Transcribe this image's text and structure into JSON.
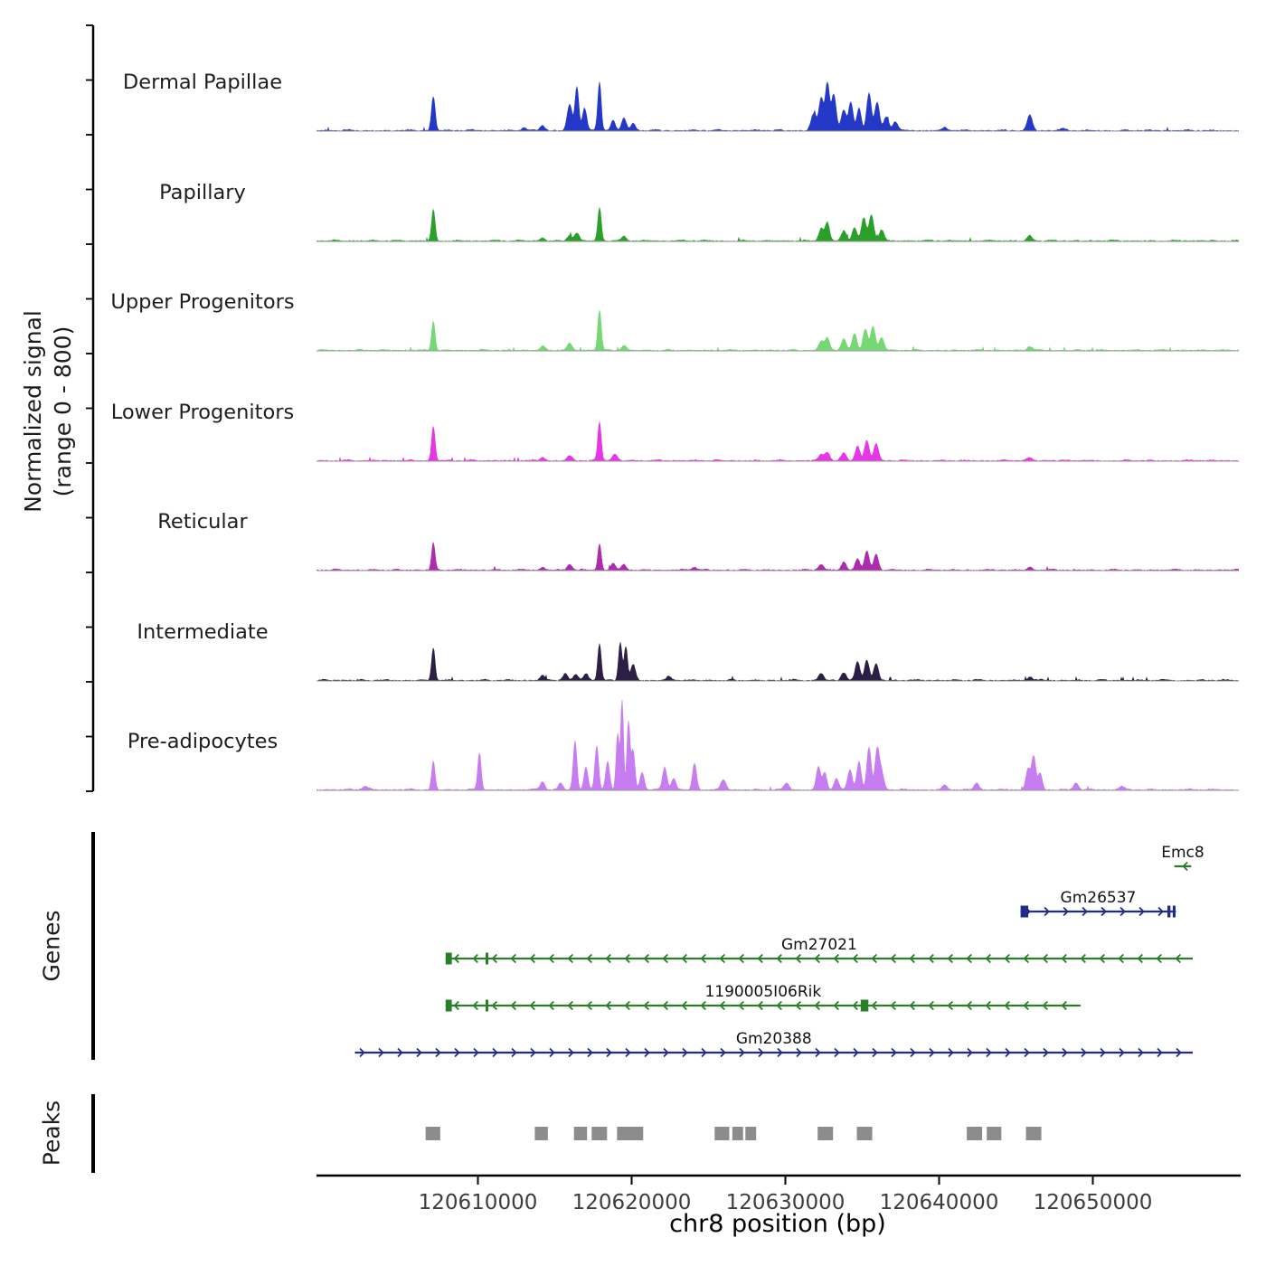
{
  "sections": {
    "genes_label": "Genes",
    "peaks_label": "Peaks"
  },
  "chart_data": {
    "type": "area",
    "title": "",
    "xlabel": "chr8 position (bp)",
    "ylabel": "Normalized signal (range 0 - 800)",
    "ylabel_lines": [
      "Normalized signal",
      "(range 0 - 800)"
    ],
    "x_range": [
      120599500,
      120659500
    ],
    "y_range": [
      0,
      800
    ],
    "x_ticks": [
      120610000,
      120620000,
      120630000,
      120640000,
      120650000
    ],
    "grid": false,
    "legend": false,
    "tracks": [
      {
        "label": "Dermal Papillae",
        "color": "#2438c8",
        "peaks": [
          [
            120607100,
            300,
            120
          ],
          [
            120613000,
            25,
            150
          ],
          [
            120614200,
            45,
            150
          ],
          [
            120615970,
            230,
            160
          ],
          [
            120616440,
            390,
            120
          ],
          [
            120616940,
            200,
            140
          ],
          [
            120617910,
            430,
            110
          ],
          [
            120618790,
            90,
            140
          ],
          [
            120619500,
            110,
            150
          ],
          [
            120620100,
            60,
            150
          ],
          [
            120631850,
            150,
            180
          ],
          [
            120632330,
            280,
            140
          ],
          [
            120632730,
            420,
            140
          ],
          [
            120633150,
            320,
            150
          ],
          [
            120633800,
            180,
            160
          ],
          [
            120634260,
            250,
            140
          ],
          [
            120634790,
            200,
            140
          ],
          [
            120635440,
            330,
            150
          ],
          [
            120635970,
            250,
            150
          ],
          [
            120636560,
            120,
            160
          ],
          [
            120637150,
            80,
            160
          ],
          [
            120640380,
            25,
            150
          ],
          [
            120645900,
            140,
            160
          ],
          [
            120648000,
            15,
            200
          ]
        ]
      },
      {
        "label": "Papillary",
        "color": "#2aa02a",
        "peaks": [
          [
            120607100,
            280,
            110
          ],
          [
            120614200,
            30,
            150
          ],
          [
            120615970,
            50,
            160
          ],
          [
            120616440,
            70,
            140
          ],
          [
            120617910,
            300,
            110
          ],
          [
            120619500,
            40,
            150
          ],
          [
            120632330,
            110,
            150
          ],
          [
            120632730,
            160,
            140
          ],
          [
            120633800,
            90,
            160
          ],
          [
            120634500,
            120,
            150
          ],
          [
            120635100,
            200,
            150
          ],
          [
            120635600,
            230,
            150
          ],
          [
            120636260,
            100,
            160
          ],
          [
            120645900,
            50,
            160
          ]
        ]
      },
      {
        "label": "Upper Progenitors",
        "color": "#74d874",
        "peaks": [
          [
            120607100,
            260,
            110
          ],
          [
            120614200,
            35,
            150
          ],
          [
            120615970,
            60,
            160
          ],
          [
            120617910,
            360,
            110
          ],
          [
            120619500,
            45,
            150
          ],
          [
            120632330,
            80,
            160
          ],
          [
            120632730,
            110,
            150
          ],
          [
            120633800,
            100,
            160
          ],
          [
            120634500,
            140,
            150
          ],
          [
            120635200,
            190,
            150
          ],
          [
            120635700,
            210,
            150
          ],
          [
            120636260,
            110,
            160
          ],
          [
            120645900,
            35,
            160
          ]
        ]
      },
      {
        "label": "Lower Progenitors",
        "color": "#e636e6",
        "peaks": [
          [
            120607100,
            300,
            110
          ],
          [
            120614200,
            30,
            150
          ],
          [
            120615970,
            45,
            160
          ],
          [
            120617910,
            340,
            110
          ],
          [
            120618900,
            60,
            160
          ],
          [
            120632330,
            55,
            160
          ],
          [
            120632730,
            75,
            150
          ],
          [
            120633800,
            65,
            160
          ],
          [
            120634700,
            130,
            150
          ],
          [
            120635300,
            180,
            150
          ],
          [
            120635900,
            150,
            150
          ],
          [
            120645900,
            25,
            160
          ]
        ]
      },
      {
        "label": "Reticular",
        "color": "#ad2bad",
        "peaks": [
          [
            120607100,
            240,
            110
          ],
          [
            120614200,
            25,
            150
          ],
          [
            120615970,
            50,
            160
          ],
          [
            120617910,
            230,
            110
          ],
          [
            120618790,
            60,
            150
          ],
          [
            120619500,
            50,
            150
          ],
          [
            120624100,
            25,
            160
          ],
          [
            120632330,
            50,
            160
          ],
          [
            120633800,
            70,
            160
          ],
          [
            120634700,
            100,
            150
          ],
          [
            120635300,
            160,
            150
          ],
          [
            120635900,
            140,
            150
          ],
          [
            120645900,
            25,
            160
          ]
        ]
      },
      {
        "label": "Intermediate",
        "color": "#2c1f45",
        "peaks": [
          [
            120607100,
            290,
            110
          ],
          [
            120614200,
            40,
            150
          ],
          [
            120615680,
            60,
            150
          ],
          [
            120616380,
            55,
            150
          ],
          [
            120617030,
            60,
            150
          ],
          [
            120617910,
            330,
            110
          ],
          [
            120619260,
            340,
            110
          ],
          [
            120619620,
            300,
            110
          ],
          [
            120620100,
            140,
            150
          ],
          [
            120622400,
            30,
            160
          ],
          [
            120632330,
            60,
            160
          ],
          [
            120633800,
            70,
            160
          ],
          [
            120634700,
            160,
            150
          ],
          [
            120635300,
            180,
            150
          ],
          [
            120635900,
            150,
            150
          ],
          [
            120645900,
            30,
            160
          ]
        ]
      },
      {
        "label": "Pre-adipocytes",
        "color": "#c77cf2",
        "peaks": [
          [
            120602700,
            30,
            200
          ],
          [
            120607100,
            250,
            110
          ],
          [
            120610100,
            330,
            110
          ],
          [
            120614200,
            70,
            150
          ],
          [
            120615380,
            60,
            150
          ],
          [
            120616320,
            430,
            120
          ],
          [
            120617030,
            200,
            130
          ],
          [
            120617730,
            380,
            120
          ],
          [
            120618440,
            250,
            130
          ],
          [
            120619090,
            500,
            100
          ],
          [
            120619380,
            800,
            90
          ],
          [
            120619790,
            600,
            100
          ],
          [
            120620090,
            350,
            120
          ],
          [
            120620680,
            150,
            140
          ],
          [
            120622150,
            200,
            140
          ],
          [
            120622730,
            100,
            150
          ],
          [
            120624090,
            230,
            130
          ],
          [
            120625970,
            90,
            160
          ],
          [
            120630090,
            60,
            160
          ],
          [
            120632150,
            200,
            140
          ],
          [
            120632560,
            150,
            140
          ],
          [
            120633320,
            100,
            150
          ],
          [
            120634200,
            180,
            150
          ],
          [
            120634790,
            250,
            140
          ],
          [
            120635440,
            380,
            140
          ],
          [
            120635970,
            350,
            140
          ],
          [
            120636260,
            150,
            150
          ],
          [
            120640380,
            40,
            160
          ],
          [
            120642440,
            60,
            160
          ],
          [
            120645790,
            180,
            140
          ],
          [
            120646150,
            300,
            130
          ],
          [
            120646560,
            150,
            140
          ],
          [
            120648900,
            60,
            160
          ],
          [
            120651850,
            30,
            180
          ]
        ]
      }
    ],
    "genes": [
      {
        "name": "Emc8",
        "color": "#2a7e2a",
        "start": 120655300,
        "end": 120656400,
        "strand": "-",
        "exons": []
      },
      {
        "name": "Gm26537",
        "color": "#202c87",
        "start": 120645300,
        "end": 120655400,
        "strand": "+",
        "exons": [
          [
            120645300,
            500
          ],
          [
            120654850,
            200
          ],
          [
            120655200,
            180
          ]
        ]
      },
      {
        "name": "Gm27021",
        "color": "#2a7e2a",
        "start": 120607900,
        "end": 120656500,
        "strand": "-",
        "exons": [
          [
            120607900,
            400
          ],
          [
            120610500,
            130
          ]
        ]
      },
      {
        "name": "1190005I06Rik",
        "color": "#2a7e2a",
        "start": 120607900,
        "end": 120649200,
        "strand": "-",
        "exons": [
          [
            120607900,
            400
          ],
          [
            120610500,
            130
          ],
          [
            120634900,
            500
          ]
        ]
      },
      {
        "name": "Gm20388",
        "color": "#202c87",
        "start": 120602000,
        "end": 120656500,
        "strand": "+",
        "exons": []
      }
    ],
    "peak_regions": [
      [
        120606600,
        120607550
      ],
      [
        120613700,
        120614550
      ],
      [
        120616250,
        120617100
      ],
      [
        120617400,
        120618400
      ],
      [
        120619050,
        120620750
      ],
      [
        120625400,
        120626350
      ],
      [
        120626550,
        120627250
      ],
      [
        120627400,
        120628100
      ],
      [
        120632100,
        120633100
      ],
      [
        120634650,
        120635650
      ],
      [
        120641800,
        120642800
      ],
      [
        120643100,
        120644050
      ],
      [
        120645650,
        120646650
      ]
    ]
  }
}
